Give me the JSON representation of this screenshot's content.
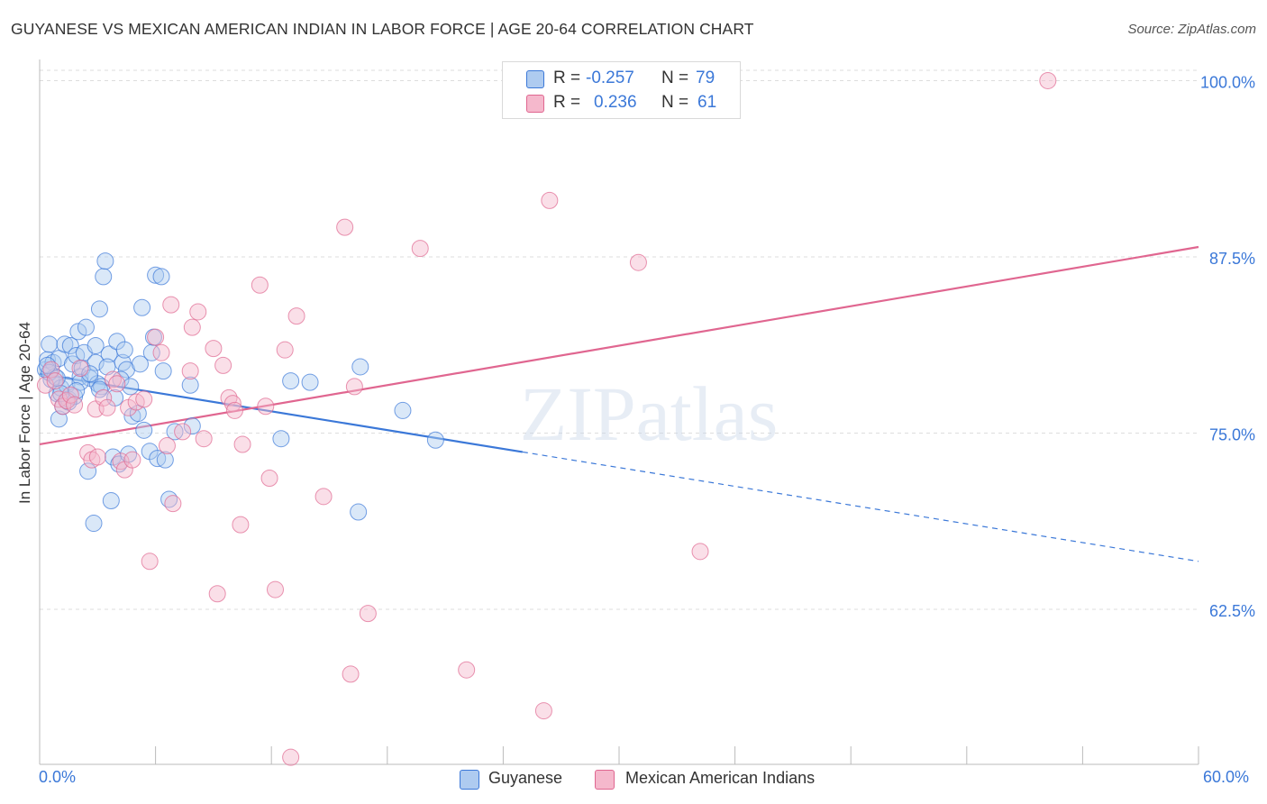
{
  "title": "GUYANESE VS MEXICAN AMERICAN INDIAN IN LABOR FORCE | AGE 20-64 CORRELATION CHART",
  "source": "Source: ZipAtlas.com",
  "watermark": "ZIPatlas",
  "colors": {
    "blue": "#3b78d8",
    "blue_fill": "#aecbf0",
    "pink": "#e06690",
    "pink_fill": "#f5b8cc",
    "axis_text": "#3b78d8",
    "grid": "#dddddd"
  },
  "legend": {
    "guyanese": {
      "r_label": "R =",
      "r_value": "-0.257",
      "n_label": "N =",
      "n_value": "79"
    },
    "mexican": {
      "r_label": "R =",
      "r_value": "0.236",
      "n_label": "N =",
      "n_value": "61"
    }
  },
  "bottom_legend": [
    "Guyanese",
    "Mexican American Indians"
  ],
  "chart_data": {
    "type": "scatter",
    "xlabel": "",
    "ylabel": "In Labor Force | Age 20-64",
    "xlim": [
      0,
      60
    ],
    "ylim": [
      51.5,
      101.5
    ],
    "x_tick_labels": [
      "0.0%",
      "60.0%"
    ],
    "y_ticks": [
      62.5,
      75.0,
      87.5,
      100.0
    ],
    "y_tick_labels": [
      "62.5%",
      "75.0%",
      "87.5%",
      "100.0%"
    ],
    "grid": "horizontal dashed",
    "legend_position": "top-center",
    "series": [
      {
        "name": "Guyanese",
        "color": "#3b78d8",
        "trend": {
          "x": [
            0,
            60
          ],
          "y": [
            79.2,
            65.9
          ],
          "solid_until_x": 25
        },
        "points": [
          [
            0.3,
            79.5
          ],
          [
            0.4,
            80.2
          ],
          [
            0.5,
            81.3
          ],
          [
            0.6,
            78.8
          ],
          [
            0.7,
            80.0
          ],
          [
            0.8,
            79.0
          ],
          [
            0.9,
            77.8
          ],
          [
            1.0,
            76.0
          ],
          [
            1.0,
            80.3
          ],
          [
            1.1,
            78.2
          ],
          [
            1.2,
            76.9
          ],
          [
            1.3,
            81.3
          ],
          [
            1.4,
            78.4
          ],
          [
            1.5,
            77.4
          ],
          [
            1.6,
            81.2
          ],
          [
            1.7,
            79.9
          ],
          [
            1.8,
            77.6
          ],
          [
            1.9,
            80.5
          ],
          [
            2.0,
            82.2
          ],
          [
            2.1,
            79.0
          ],
          [
            2.2,
            79.6
          ],
          [
            2.3,
            80.7
          ],
          [
            2.4,
            82.5
          ],
          [
            2.5,
            72.3
          ],
          [
            2.6,
            78.9
          ],
          [
            2.8,
            68.6
          ],
          [
            2.9,
            81.2
          ],
          [
            3.0,
            78.5
          ],
          [
            3.1,
            83.8
          ],
          [
            3.2,
            78.3
          ],
          [
            3.3,
            86.1
          ],
          [
            3.4,
            87.2
          ],
          [
            3.6,
            80.6
          ],
          [
            3.7,
            70.2
          ],
          [
            3.8,
            73.3
          ],
          [
            3.9,
            77.5
          ],
          [
            4.0,
            81.5
          ],
          [
            4.1,
            72.8
          ],
          [
            4.3,
            80.0
          ],
          [
            4.4,
            80.9
          ],
          [
            4.5,
            79.5
          ],
          [
            4.6,
            73.5
          ],
          [
            4.8,
            76.2
          ],
          [
            5.1,
            76.4
          ],
          [
            5.2,
            79.9
          ],
          [
            5.3,
            83.9
          ],
          [
            5.4,
            75.2
          ],
          [
            5.7,
            73.7
          ],
          [
            5.8,
            80.7
          ],
          [
            5.9,
            81.8
          ],
          [
            6.0,
            86.2
          ],
          [
            6.1,
            73.2
          ],
          [
            6.3,
            86.1
          ],
          [
            6.4,
            79.4
          ],
          [
            6.5,
            73.1
          ],
          [
            6.7,
            70.3
          ],
          [
            7.0,
            75.1
          ],
          [
            7.8,
            78.4
          ],
          [
            7.9,
            75.5
          ],
          [
            12.5,
            74.6
          ],
          [
            13.0,
            78.7
          ],
          [
            14.0,
            78.6
          ],
          [
            16.5,
            69.4
          ],
          [
            16.6,
            79.7
          ],
          [
            18.8,
            76.6
          ],
          [
            20.5,
            74.5
          ],
          [
            0.5,
            79.3
          ],
          [
            0.9,
            78.9
          ],
          [
            1.5,
            77.2
          ],
          [
            2.1,
            78.6
          ],
          [
            2.9,
            80.0
          ],
          [
            3.5,
            79.7
          ],
          [
            4.2,
            78.8
          ],
          [
            0.4,
            79.8
          ],
          [
            1.1,
            77.8
          ],
          [
            1.9,
            78.0
          ],
          [
            2.6,
            79.2
          ],
          [
            3.1,
            78.1
          ],
          [
            4.7,
            78.3
          ]
        ]
      },
      {
        "name": "Mexican American Indians",
        "color": "#e06690",
        "trend": {
          "x": [
            0,
            60
          ],
          "y": [
            74.2,
            88.2
          ]
        },
        "points": [
          [
            0.3,
            78.4
          ],
          [
            0.6,
            79.5
          ],
          [
            0.8,
            78.7
          ],
          [
            1.0,
            77.4
          ],
          [
            1.2,
            76.9
          ],
          [
            1.4,
            77.3
          ],
          [
            1.6,
            77.7
          ],
          [
            1.8,
            77.0
          ],
          [
            2.1,
            79.6
          ],
          [
            2.5,
            73.6
          ],
          [
            2.7,
            73.1
          ],
          [
            2.9,
            76.7
          ],
          [
            3.0,
            73.3
          ],
          [
            3.3,
            77.5
          ],
          [
            3.5,
            76.8
          ],
          [
            3.8,
            78.8
          ],
          [
            4.0,
            78.5
          ],
          [
            4.2,
            73.0
          ],
          [
            4.4,
            72.4
          ],
          [
            4.6,
            76.8
          ],
          [
            4.8,
            73.1
          ],
          [
            5.0,
            77.2
          ],
          [
            5.4,
            77.4
          ],
          [
            5.7,
            65.9
          ],
          [
            6.0,
            81.8
          ],
          [
            6.3,
            80.7
          ],
          [
            6.6,
            74.1
          ],
          [
            6.8,
            84.1
          ],
          [
            6.9,
            70.0
          ],
          [
            7.4,
            75.1
          ],
          [
            7.8,
            79.4
          ],
          [
            7.9,
            82.5
          ],
          [
            8.2,
            83.6
          ],
          [
            8.5,
            74.6
          ],
          [
            9.0,
            81.0
          ],
          [
            9.2,
            63.6
          ],
          [
            9.5,
            79.8
          ],
          [
            9.8,
            77.5
          ],
          [
            10.0,
            77.1
          ],
          [
            10.1,
            76.6
          ],
          [
            10.4,
            68.5
          ],
          [
            10.5,
            74.2
          ],
          [
            11.4,
            85.5
          ],
          [
            11.7,
            76.9
          ],
          [
            11.9,
            71.8
          ],
          [
            12.2,
            63.9
          ],
          [
            12.7,
            80.9
          ],
          [
            13.0,
            52.0
          ],
          [
            13.3,
            83.3
          ],
          [
            14.7,
            70.5
          ],
          [
            15.8,
            89.6
          ],
          [
            16.1,
            57.9
          ],
          [
            16.3,
            78.3
          ],
          [
            17.0,
            62.2
          ],
          [
            19.7,
            88.1
          ],
          [
            22.1,
            58.2
          ],
          [
            26.1,
            55.3
          ],
          [
            26.4,
            91.5
          ],
          [
            31.0,
            87.1
          ],
          [
            34.2,
            66.6
          ],
          [
            52.2,
            100.0
          ]
        ]
      }
    ]
  }
}
